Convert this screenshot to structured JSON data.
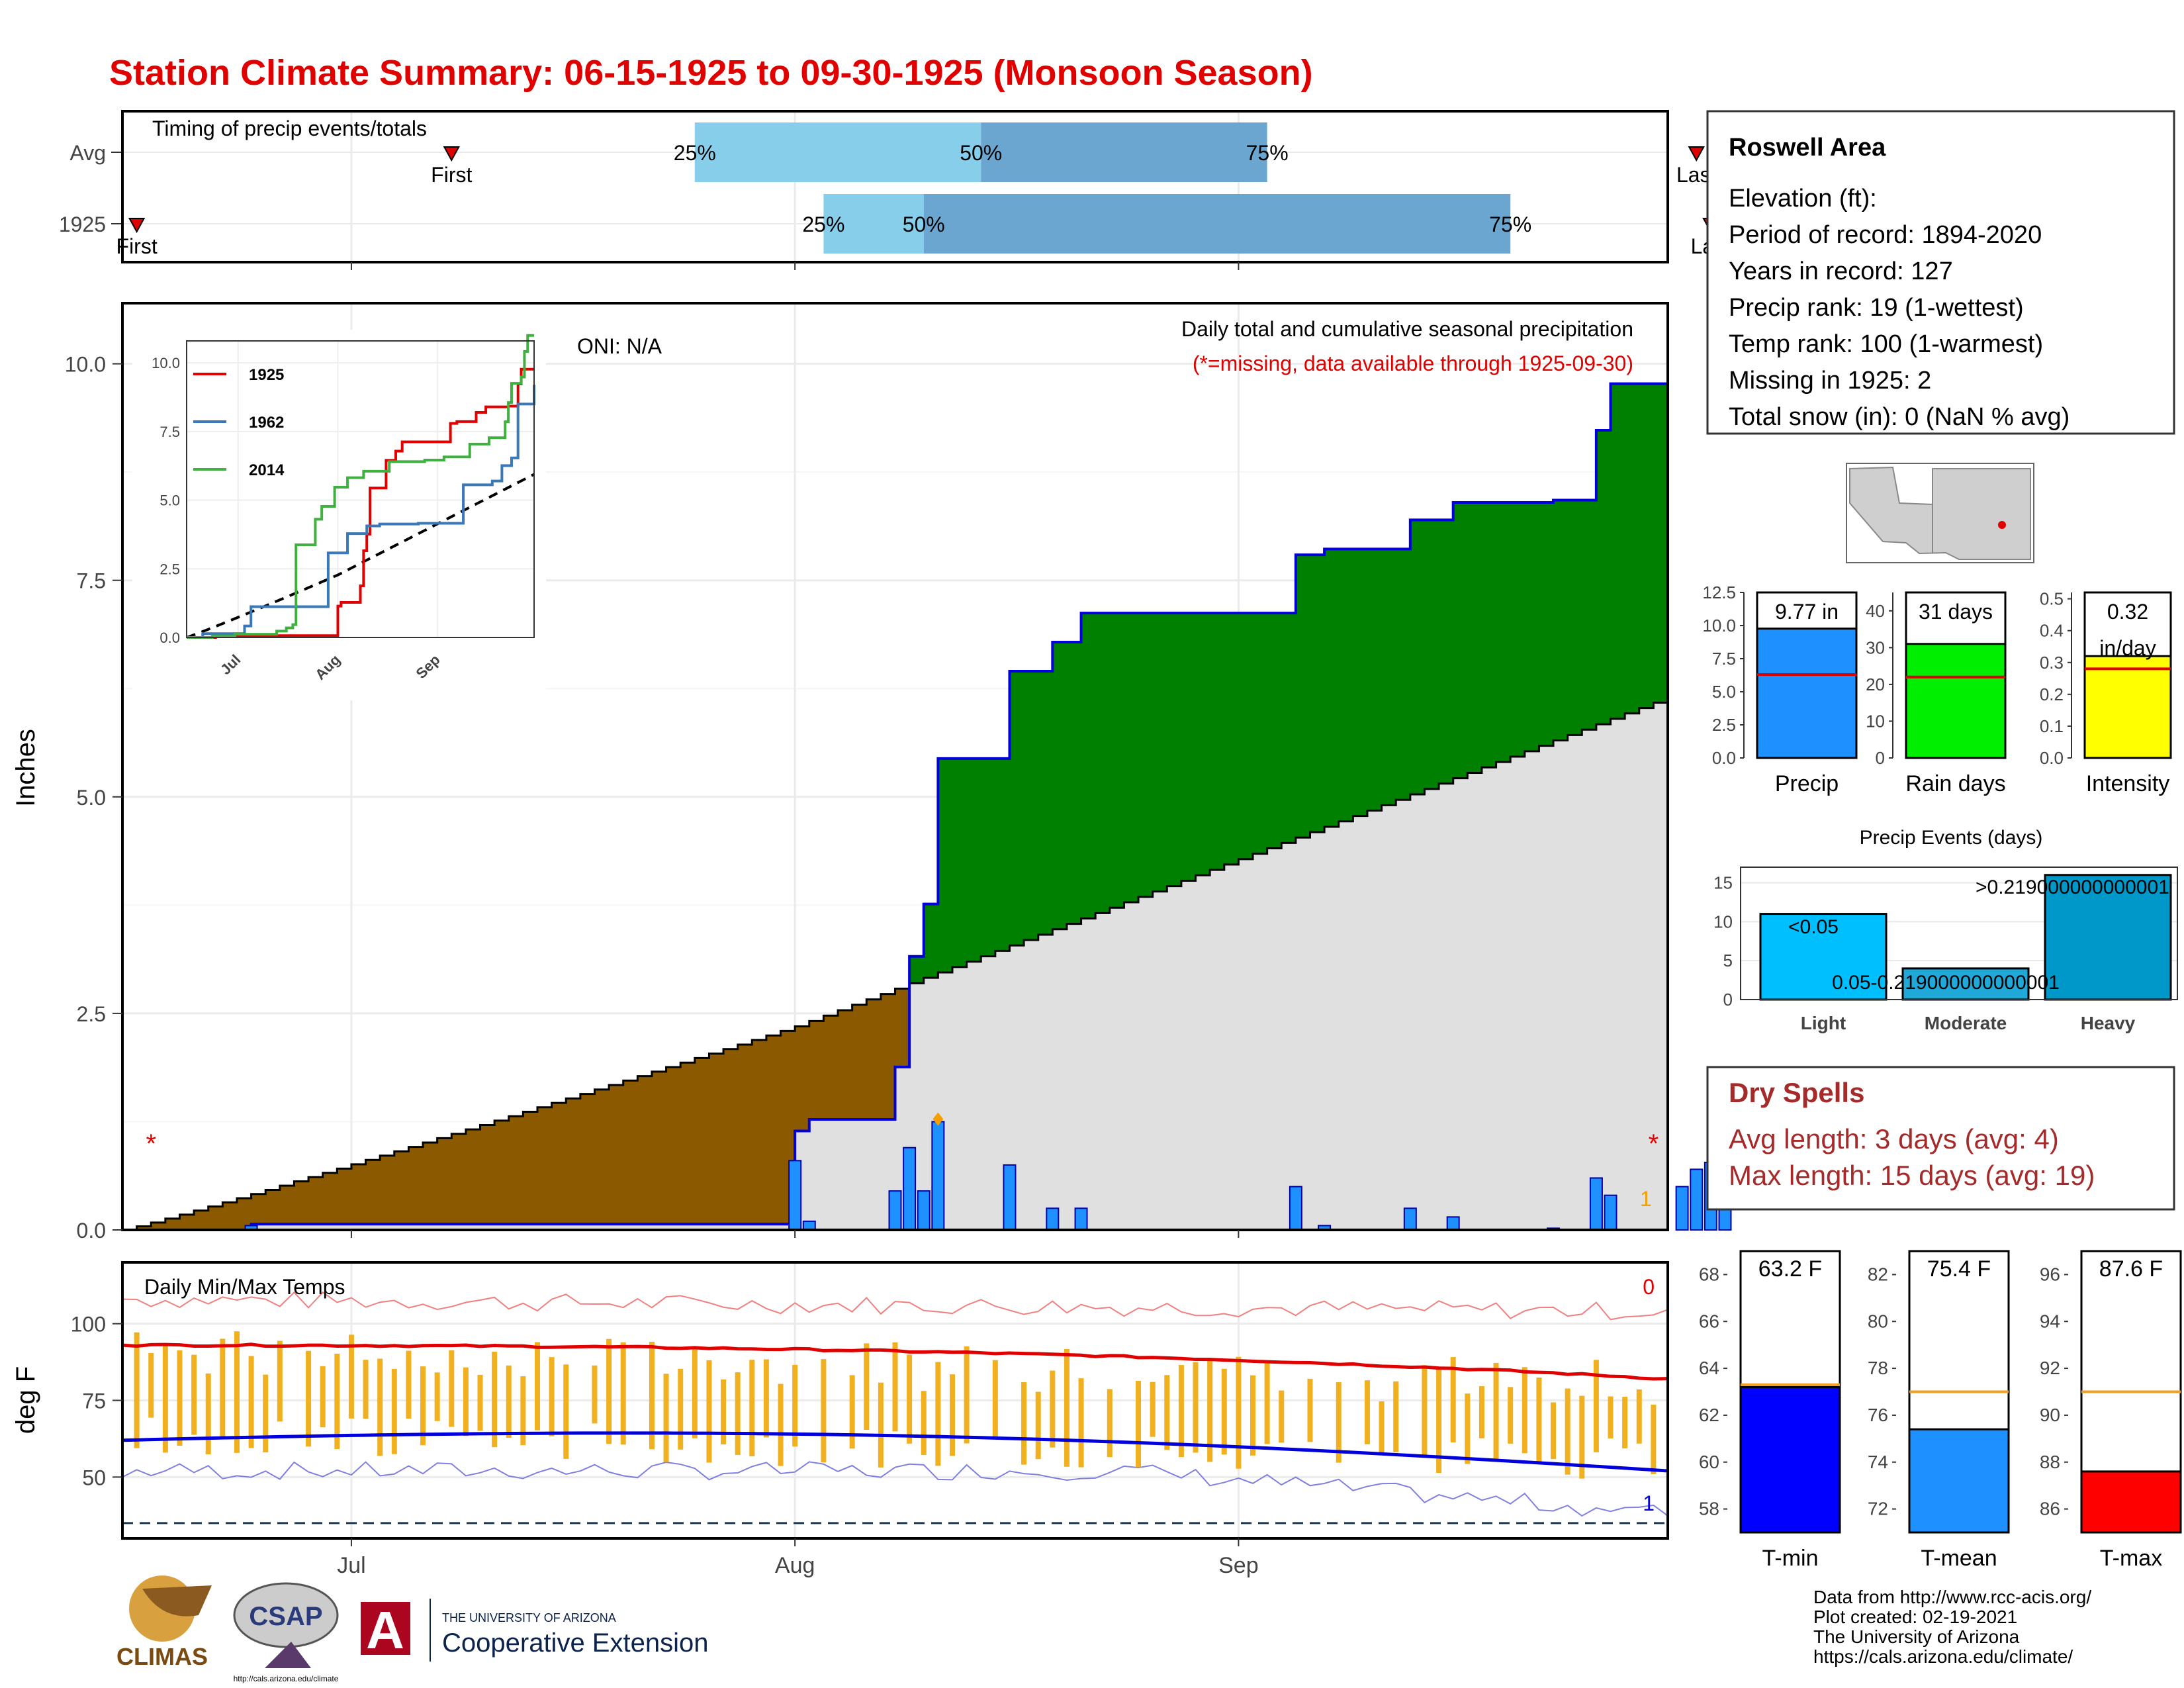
{
  "title": "Station Climate Summary: 06-15-1925 to 09-30-1925 (Monsoon Season)",
  "colors": {
    "title": "#e00000",
    "precip_bar": "#1e90ff",
    "above": "#008000",
    "below": "#8b5a00",
    "clim": "#e0e0e0",
    "tmax": "#e00000",
    "tmin": "#0000dd",
    "range": "#f0b020",
    "dry": "#a52a2a"
  },
  "timing": {
    "label": "Timing of precip events/totals",
    "rows": [
      {
        "name": "Avg",
        "first": "First",
        "last": "Last",
        "p25": "25%",
        "p50": "50%",
        "p75": "75%",
        "first_day": 23,
        "last_day": 110,
        "d25": 40,
        "d50": 60,
        "d75": 80
      },
      {
        "name": "1925",
        "first": "First",
        "last": "Last",
        "p25": "25%",
        "p50": "50%",
        "p75": "75%",
        "first_day": 1,
        "last_day": 111,
        "d25": 49,
        "d50": 56,
        "d75": 97
      }
    ]
  },
  "main": {
    "ylabel": "Inches",
    "heading": "Daily total and cumulative seasonal precipitation",
    "note": "(*=missing, data available through 1925-09-30)",
    "oni": "ONI: N/A",
    "right_count": "1",
    "yticks": [
      "0.0",
      "2.5",
      "5.0",
      "7.5",
      "10.0"
    ],
    "xticks": [
      "Jul",
      "Aug",
      "Sep"
    ]
  },
  "inset": {
    "yticks": [
      "0.0",
      "2.5",
      "5.0",
      "7.5",
      "10.0"
    ],
    "xticks": [
      "Jul",
      "Aug",
      "Sep"
    ],
    "legend": [
      "1925",
      "1962",
      "2014"
    ]
  },
  "temps": {
    "label": "Daily Min/Max Temps",
    "ylabel": "deg F",
    "top_count": "0",
    "bottom_count": "1",
    "yticks": [
      "50",
      "75",
      "100"
    ]
  },
  "info": {
    "station": "Roswell Area",
    "lines": [
      "Elevation (ft):",
      "Period of record: 1894-2020",
      "Years in record: 127",
      "Precip rank: 19 (1-wettest)",
      "Temp rank: 100 (1-warmest)",
      "Missing in 1925: 2",
      "Total snow (in): 0 (NaN % avg)"
    ]
  },
  "mini": {
    "precip": {
      "label": "9.77 in",
      "xlabel": "Precip",
      "yticks": [
        "0.0",
        "2.5",
        "5.0",
        "7.5",
        "10.0",
        "12.5"
      ]
    },
    "raindays": {
      "label": "31 days",
      "xlabel": "Rain days",
      "yticks": [
        "0",
        "10",
        "20",
        "30",
        "40"
      ]
    },
    "intensity": {
      "label1": "0.32",
      "label2": "in/day",
      "xlabel": "Intensity",
      "yticks": [
        "0.0",
        "0.1",
        "0.2",
        "0.3",
        "0.4",
        "0.5"
      ]
    }
  },
  "events": {
    "title": "Precip Events (days)",
    "labels": [
      "<0.05",
      "0.05-0.219000000000001",
      ">0.219000000000001"
    ],
    "cats": [
      "Light",
      "Moderate",
      "Heavy"
    ],
    "yticks": [
      "0",
      "5",
      "10",
      "15"
    ]
  },
  "dry": {
    "title": "Dry Spells",
    "avg": "Avg length: 3 days (avg: 4)",
    "max": "Max length: 15 days (avg: 19)"
  },
  "tbars": {
    "tmin": {
      "label": "63.2 F",
      "xlabel": "T-min",
      "yticks": [
        "58",
        "60",
        "62",
        "64",
        "66",
        "68"
      ]
    },
    "tmean": {
      "label": "75.4 F",
      "xlabel": "T-mean",
      "yticks": [
        "72",
        "74",
        "76",
        "78",
        "80",
        "82"
      ]
    },
    "tmax": {
      "label": "87.6 F",
      "xlabel": "T-max",
      "yticks": [
        "86",
        "88",
        "90",
        "92",
        "94",
        "96"
      ]
    }
  },
  "logos": {
    "climas": "CLIMAS",
    "csap": "CSAP",
    "csap_url": "http://cals.arizona.edu/climate",
    "ua_top": "THE UNIVERSITY OF ARIZONA",
    "ua_bottom": "Cooperative Extension"
  },
  "credits": [
    "Data from http://www.rcc-acis.org/",
    "Plot created: 02-19-2021",
    "The University of Arizona",
    "https://cals.arizona.edu/climate/"
  ],
  "chart_data": {
    "type": "area",
    "title": "Daily total and cumulative seasonal precipitation",
    "ylabel": "Inches",
    "ylim": [
      0,
      10.7
    ],
    "start": "1925-06-15",
    "end": "1925-09-30",
    "rain_events": [
      {
        "day": 47,
        "v": 0.8
      },
      {
        "day": 48,
        "v": 0.1
      },
      {
        "day": 54,
        "v": 0.45
      },
      {
        "day": 55,
        "v": 0.95
      },
      {
        "day": 56,
        "v": 0.45
      },
      {
        "day": 57,
        "v": 1.25
      },
      {
        "day": 62,
        "v": 0.75
      },
      {
        "day": 65,
        "v": 0.25
      },
      {
        "day": 67,
        "v": 0.25
      },
      {
        "day": 9,
        "v": 0.05
      },
      {
        "day": 82,
        "v": 0.5
      },
      {
        "day": 84,
        "v": 0.05
      },
      {
        "day": 90,
        "v": 0.25
      },
      {
        "day": 93,
        "v": 0.15
      },
      {
        "day": 100,
        "v": 0.02
      },
      {
        "day": 103,
        "v": 0.6
      },
      {
        "day": 104,
        "v": 0.4
      },
      {
        "day": 109,
        "v": 0.5
      },
      {
        "day": 110,
        "v": 0.7
      },
      {
        "day": 111,
        "v": 0.78
      },
      {
        "day": 112,
        "v": 0.3
      }
    ],
    "series": [
      {
        "name": "1925",
        "total": 9.77
      },
      {
        "name": "1962",
        "total": 9.2
      },
      {
        "name": "2014",
        "total": 11.0
      }
    ],
    "climatology_end": 6.15,
    "temps": {
      "ylim": [
        30,
        120
      ],
      "tmax_avg_start": 93,
      "tmax_avg_end": 82,
      "tmin_avg_start": 62,
      "tmin_avg_end": 52,
      "tmin_mean": 63.2,
      "tmean": 75.4,
      "tmax_mean": 87.6
    },
    "events": {
      "light": 11,
      "moderate": 4,
      "heavy": 16
    },
    "mini": {
      "precip": 9.77,
      "precip_avg": 6.3,
      "raindays": 31,
      "raindays_avg": 22,
      "intensity": 0.32,
      "intensity_avg": 0.28
    }
  }
}
